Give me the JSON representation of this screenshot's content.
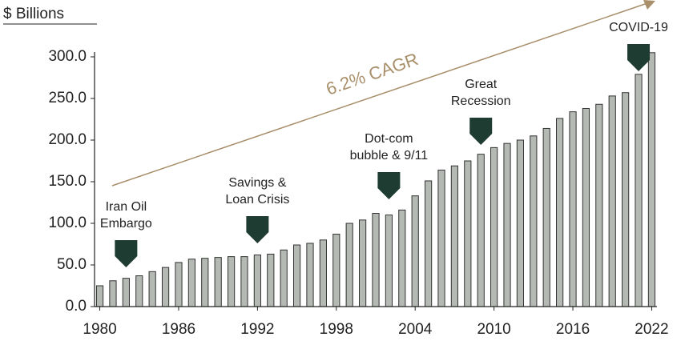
{
  "chart_data": {
    "type": "bar",
    "y_label": "$ Billions",
    "trend_label": "6.2% CAGR",
    "x": [
      1980,
      1981,
      1982,
      1983,
      1984,
      1985,
      1986,
      1987,
      1988,
      1989,
      1990,
      1991,
      1992,
      1993,
      1994,
      1995,
      1996,
      1997,
      1998,
      1999,
      2000,
      2001,
      2002,
      2003,
      2004,
      2005,
      2006,
      2007,
      2008,
      2009,
      2010,
      2011,
      2012,
      2013,
      2014,
      2015,
      2016,
      2017,
      2018,
      2019,
      2020,
      2021,
      2022
    ],
    "values": [
      25,
      31,
      34,
      37,
      42,
      47,
      53,
      57,
      58,
      59,
      60,
      60,
      62,
      63,
      68,
      74,
      76,
      80,
      87,
      100,
      104,
      112,
      110,
      116,
      133,
      151,
      164,
      169,
      175,
      183,
      191,
      196,
      200,
      205,
      214,
      226,
      234,
      238,
      243,
      253,
      257,
      279,
      305
    ],
    "color": "#b4b9b4",
    "xlim": [
      1979.6,
      2022.4
    ],
    "xticks": [
      1980,
      1986,
      1992,
      1998,
      2004,
      2010,
      2016,
      2022
    ],
    "ylim": [
      0,
      300
    ],
    "yticks": [
      {
        "value": 0,
        "label": "0.0"
      },
      {
        "value": 50,
        "label": "50.0"
      },
      {
        "value": 100,
        "label": "100.0"
      },
      {
        "value": 150,
        "label": "150.0"
      },
      {
        "value": 200,
        "label": "200.0"
      },
      {
        "value": 250,
        "label": "250.0"
      },
      {
        "value": 300,
        "label": "300.0"
      }
    ],
    "annotations": [
      {
        "lines": [
          "Iran Oil",
          "Embargo"
        ],
        "x": 1982
      },
      {
        "lines": [
          "Savings &",
          "Loan Crisis"
        ],
        "x": 1992
      },
      {
        "lines": [
          "Dot-com",
          "bubble & 9/11"
        ],
        "x": 2002
      },
      {
        "lines": [
          "Great",
          "Recession"
        ],
        "x": 2009
      },
      {
        "lines": [
          "COVID-19"
        ],
        "x": 2021
      }
    ],
    "marker_color": "#1f3c32",
    "trend_color": "#a88f6a"
  }
}
